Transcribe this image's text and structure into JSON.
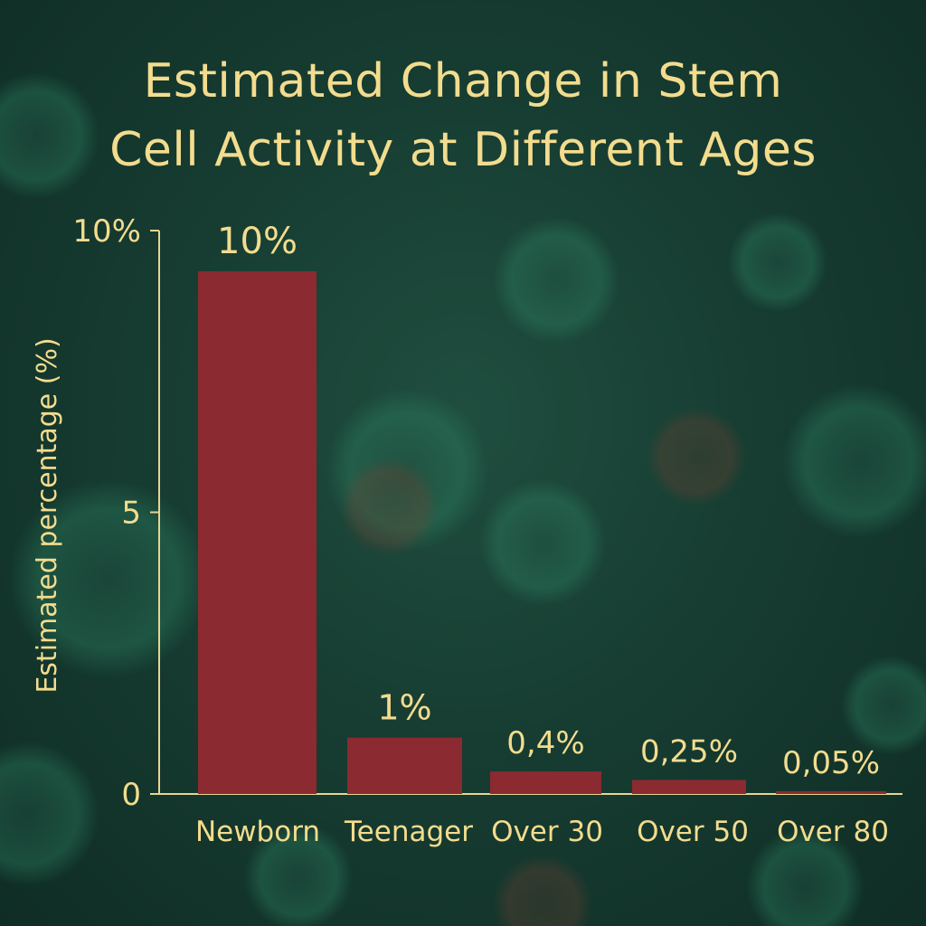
{
  "chart_data": {
    "type": "bar",
    "title": "Estimated Change in Stem Cell Activity at Different Ages",
    "title_lines": [
      "Estimated Change in Stem",
      "Cell Activity at Different Ages"
    ],
    "xlabel": "",
    "ylabel": "Estimated percentage (%)",
    "categories": [
      "Newborn",
      "Teenager",
      "Over 30",
      "Over 50",
      "Over 80"
    ],
    "values": [
      10,
      1,
      0.4,
      0.25,
      0.05
    ],
    "data_labels": [
      "10%",
      "1%",
      "0,4%",
      "0,25%",
      "0,05%"
    ],
    "y_ticks": [
      {
        "value": 10,
        "label": "10%"
      },
      {
        "value": 5,
        "label": "5"
      },
      {
        "value": 0,
        "label": "0"
      }
    ],
    "ylim": [
      0,
      10
    ],
    "grid": false,
    "legend": "none",
    "colors": {
      "bar": "#8b2a30",
      "text": "#f3dc8e",
      "axis": "#e8d492",
      "background": "#173d32"
    }
  }
}
